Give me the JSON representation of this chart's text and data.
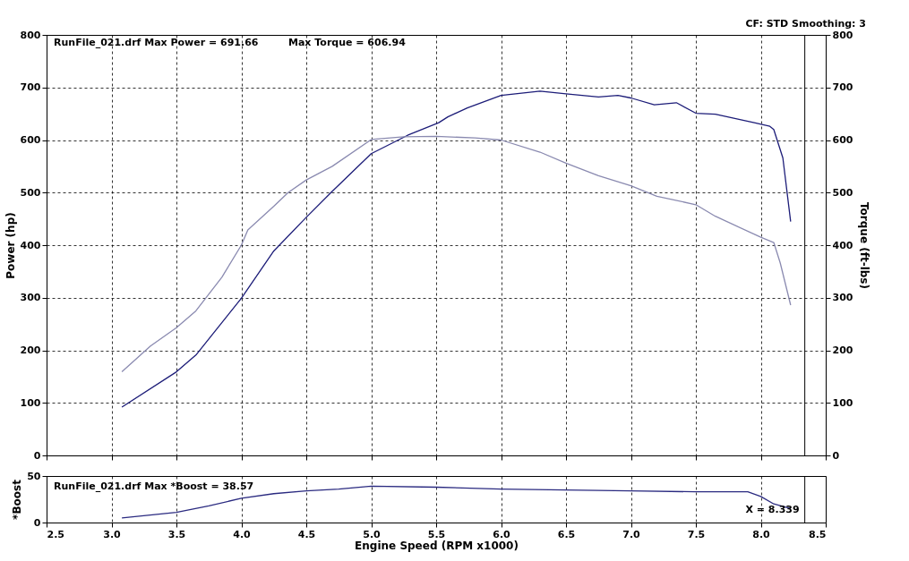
{
  "chart_data": [
    {
      "type": "line",
      "ylabel": "Power (hp)",
      "y2label": "Torque (ft-lbs)",
      "annotations": [
        "RunFile_021.drf Max Power = 691.66",
        "Max Torque = 606.94",
        "CF: STD  Smoothing: 3"
      ],
      "series": [
        {
          "color": "#1c1c78",
          "x": [
            3.08,
            3.5,
            3.65,
            4.0,
            4.25,
            4.5,
            4.69,
            5.0,
            5.28,
            5.52,
            5.59,
            5.74,
            6.0,
            6.3,
            6.5,
            6.75,
            6.9,
            7.0,
            7.18,
            7.35,
            7.5,
            7.65,
            7.8,
            7.95,
            8.07,
            8.1,
            8.17,
            8.23
          ],
          "values": [
            92,
            159,
            191,
            299,
            389,
            453,
            500,
            574,
            609,
            633,
            644,
            661,
            685,
            693,
            688,
            682,
            685,
            680,
            667,
            671,
            651,
            649,
            641,
            633,
            626,
            620,
            566,
            445
          ]
        },
        {
          "color": "#8a8ab0",
          "axis": "y2",
          "x": [
            3.08,
            3.3,
            3.5,
            3.65,
            3.85,
            4.0,
            4.05,
            4.25,
            4.36,
            4.5,
            4.7,
            5.0,
            5.25,
            5.5,
            5.8,
            6.0,
            6.3,
            6.5,
            6.75,
            7.0,
            7.2,
            7.5,
            7.65,
            8.0,
            8.1,
            8.15,
            8.23
          ],
          "values": [
            159,
            208,
            243,
            275,
            339,
            400,
            429,
            474,
            500,
            524,
            550,
            601,
            606,
            607,
            604,
            600,
            577,
            556,
            532,
            513,
            493,
            477,
            455,
            415,
            405,
            366,
            286
          ]
        }
      ],
      "xlim": [
        2.5,
        8.5
      ],
      "xticks": [
        2.5,
        3.0,
        3.5,
        4.0,
        4.5,
        5.0,
        5.5,
        6.0,
        6.5,
        7.0,
        7.5,
        8.0,
        8.5
      ],
      "ylim": [
        0,
        800
      ],
      "yticks": [
        0,
        100,
        200,
        300,
        400,
        500,
        600,
        700,
        800
      ],
      "y2lim": [
        0,
        800
      ],
      "y2ticks": [
        0,
        100,
        200,
        300,
        400,
        500,
        600,
        700,
        800
      ],
      "ref_lines": [
        {
          "axis": "x",
          "value": 8.339
        }
      ],
      "grid": true,
      "tick_labels": "y"
    },
    {
      "type": "line",
      "ylabel": "*Boost",
      "xlabel": "Engine Speed (RPM x1000)",
      "annotations": [
        "RunFile_021.drf Max *Boost = 38.57"
      ],
      "xticks": [
        2.5,
        {
          "value": 3,
          "label": "3.0"
        },
        3.5,
        {
          "value": 4,
          "label": "4.0"
        },
        4.5,
        {
          "value": 5,
          "label": "5.0"
        },
        5.5,
        {
          "value": 6,
          "label": "6.0"
        },
        6.5,
        {
          "value": 7,
          "label": "7.0"
        },
        7.5,
        {
          "value": 8,
          "label": "8.0"
        },
        8.5
      ],
      "series": [
        {
          "color": "#2a2a80",
          "x": [
            3.08,
            3.5,
            3.75,
            4.0,
            4.25,
            4.5,
            4.75,
            5.0,
            5.5,
            6.0,
            6.5,
            7.0,
            7.5,
            7.9,
            8.0,
            8.1,
            8.23
          ],
          "values": [
            5,
            11,
            18,
            26,
            31,
            34,
            36,
            39,
            38,
            36,
            35,
            34,
            33,
            33,
            28,
            20,
            15
          ]
        }
      ],
      "xlim": [
        2.5,
        8.5
      ],
      "ylim": [
        0,
        50
      ],
      "yticks": [
        0,
        50
      ],
      "ref_lines": [
        {
          "axis": "x",
          "value": 8.339,
          "label": "X = 8.339"
        }
      ],
      "grid": true
    }
  ]
}
